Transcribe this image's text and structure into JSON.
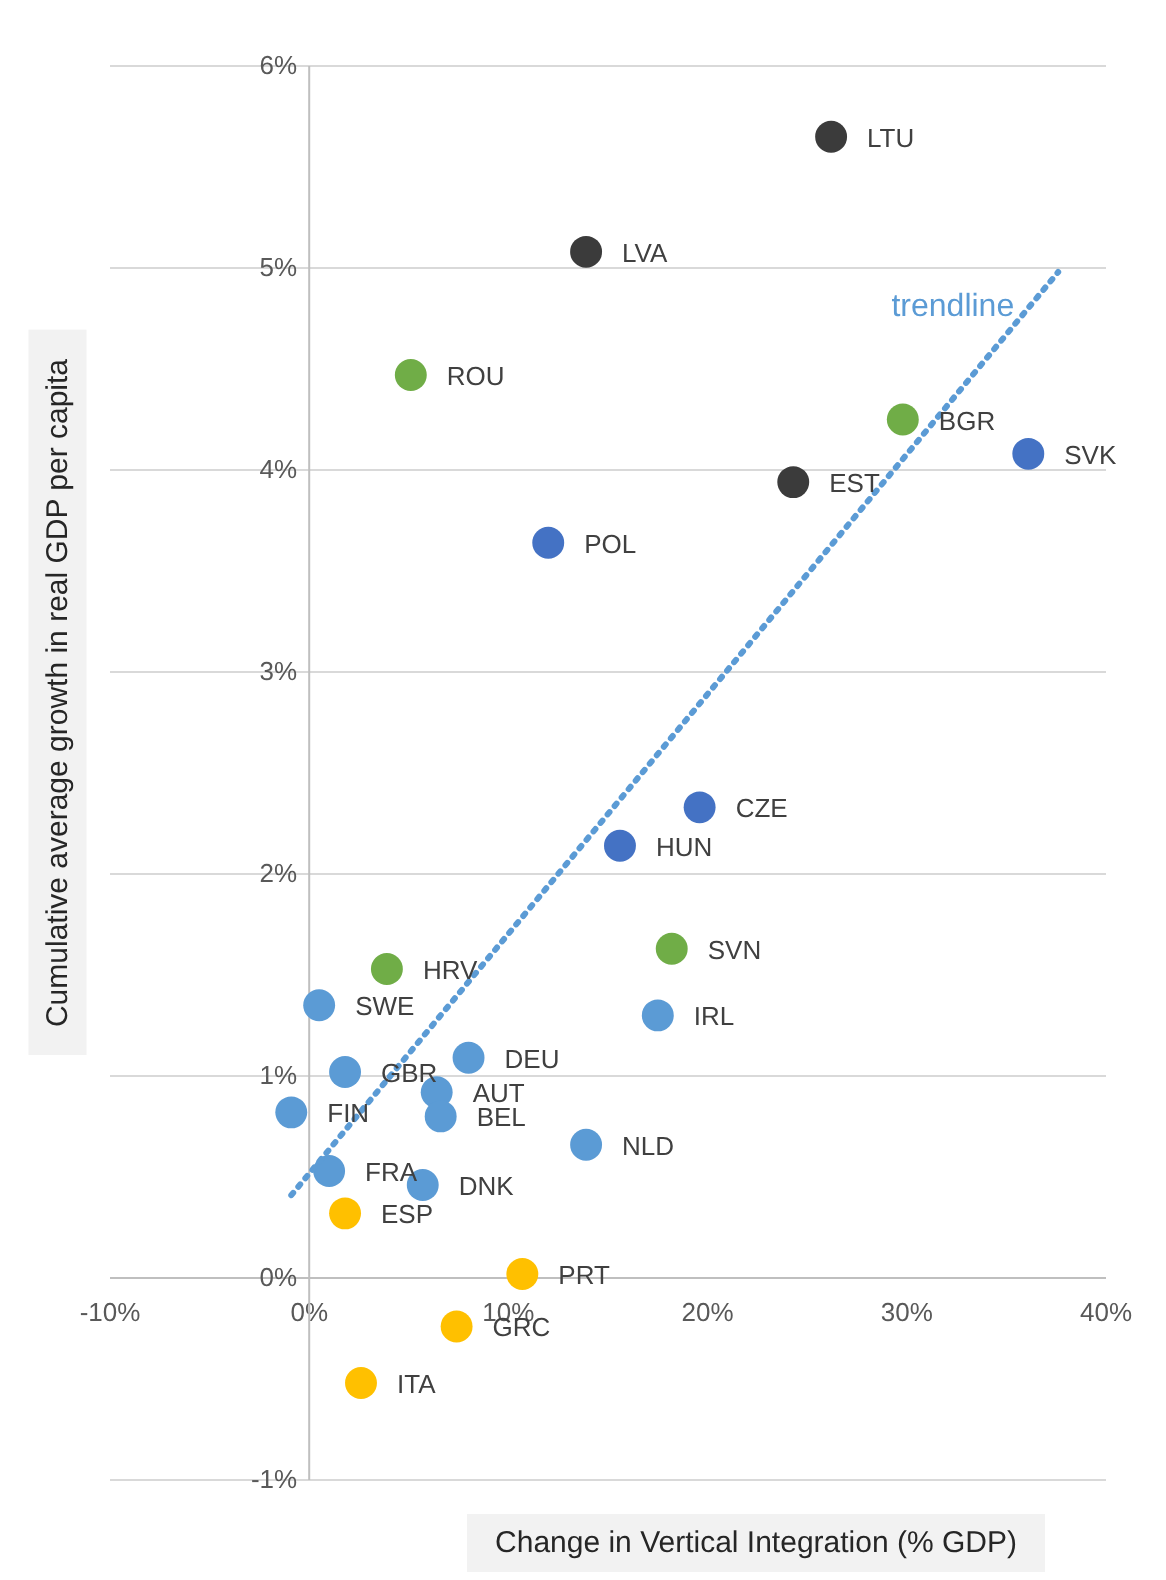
{
  "chart_data": {
    "type": "scatter",
    "xlabel": "Change in Vertical Integration (% GDP)",
    "ylabel": "Cumulative average growth in real GDP per capita",
    "xlim": [
      -10,
      40
    ],
    "ylim": [
      -1,
      6
    ],
    "xticks": [
      {
        "value": -10,
        "label": "-10%"
      },
      {
        "value": 0,
        "label": "0%"
      },
      {
        "value": 10,
        "label": "10%"
      },
      {
        "value": 20,
        "label": "20%"
      },
      {
        "value": 30,
        "label": "30%"
      },
      {
        "value": 40,
        "label": "40%"
      }
    ],
    "yticks": [
      {
        "value": -1,
        "label": "-1%"
      },
      {
        "value": 0,
        "label": "0%"
      },
      {
        "value": 1,
        "label": "1%"
      },
      {
        "value": 2,
        "label": "2%"
      },
      {
        "value": 3,
        "label": "3%"
      },
      {
        "value": 4,
        "label": "4%"
      },
      {
        "value": 5,
        "label": "5%"
      },
      {
        "value": 6,
        "label": "6%"
      }
    ],
    "grid": "y",
    "marker": "circle",
    "series": [
      {
        "color": "#3b3b3b",
        "x": [
          26.2,
          13.9,
          24.3
        ],
        "values": [
          5.65,
          5.08,
          3.94
        ]
      },
      {
        "color": "#70ad47",
        "x": [
          5.1,
          29.8,
          18.2,
          3.9
        ],
        "values": [
          4.47,
          4.25,
          1.63,
          1.53
        ]
      },
      {
        "color": "#4472c4",
        "x": [
          36.1,
          12.0,
          19.6,
          15.6
        ],
        "values": [
          4.08,
          3.64,
          2.33,
          2.14
        ]
      },
      {
        "color": "#5b9bd5",
        "x": [
          0.5,
          17.5,
          8.0,
          1.8,
          6.4,
          -0.9,
          6.6,
          13.9,
          1.0,
          5.7
        ],
        "values": [
          1.35,
          1.3,
          1.09,
          1.02,
          0.92,
          0.82,
          0.8,
          0.66,
          0.53,
          0.46
        ]
      },
      {
        "color": "#ffc000",
        "x": [
          1.8,
          10.7,
          7.4,
          2.6
        ],
        "values": [
          0.32,
          0.02,
          -0.24,
          -0.52
        ]
      },
      {
        "type": "line",
        "name": "trendline",
        "color": "#5b9bd5",
        "line_style": "dotted",
        "marker": "none",
        "x": [
          -0.9,
          37.6
        ],
        "values": [
          0.41,
          4.98
        ]
      }
    ],
    "annotations": [
      {
        "text": "LTU",
        "x": 26.2,
        "y": 5.65
      },
      {
        "text": "LVA",
        "x": 13.9,
        "y": 5.08
      },
      {
        "text": "EST",
        "x": 24.3,
        "y": 3.94
      },
      {
        "text": "ROU",
        "x": 5.1,
        "y": 4.47
      },
      {
        "text": "BGR",
        "x": 29.8,
        "y": 4.25
      },
      {
        "text": "SVN",
        "x": 18.2,
        "y": 1.63
      },
      {
        "text": "HRV",
        "x": 3.9,
        "y": 1.53
      },
      {
        "text": "SVK",
        "x": 36.1,
        "y": 4.08
      },
      {
        "text": "POL",
        "x": 12.0,
        "y": 3.64
      },
      {
        "text": "CZE",
        "x": 19.6,
        "y": 2.33
      },
      {
        "text": "HUN",
        "x": 15.6,
        "y": 2.14
      },
      {
        "text": "SWE",
        "x": 0.5,
        "y": 1.35
      },
      {
        "text": "IRL",
        "x": 17.5,
        "y": 1.3
      },
      {
        "text": "DEU",
        "x": 8.0,
        "y": 1.09
      },
      {
        "text": "GBR",
        "x": 1.8,
        "y": 1.02
      },
      {
        "text": "AUT",
        "x": 6.4,
        "y": 0.92
      },
      {
        "text": "FIN",
        "x": -0.9,
        "y": 0.82
      },
      {
        "text": "BEL",
        "x": 6.6,
        "y": 0.8
      },
      {
        "text": "NLD",
        "x": 13.9,
        "y": 0.66
      },
      {
        "text": "FRA",
        "x": 1.0,
        "y": 0.53
      },
      {
        "text": "DNK",
        "x": 5.7,
        "y": 0.46
      },
      {
        "text": "ESP",
        "x": 1.8,
        "y": 0.32
      },
      {
        "text": "PRT",
        "x": 10.7,
        "y": 0.02
      },
      {
        "text": "GRC",
        "x": 7.4,
        "y": -0.24
      },
      {
        "text": "ITA",
        "x": 2.6,
        "y": -0.52
      }
    ]
  }
}
